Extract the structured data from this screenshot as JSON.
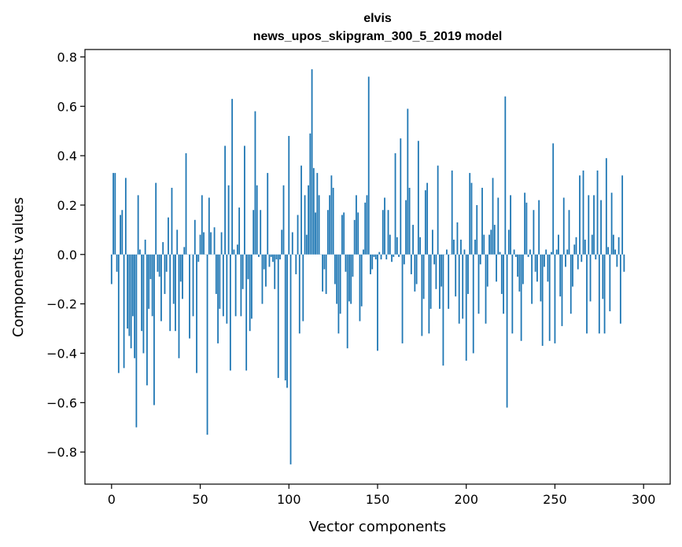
{
  "chart_data": {
    "type": "bar",
    "title_line1": "elvis",
    "title_line2": "news_upos_skipgram_300_5_2019 model",
    "xlabel": "Vector components",
    "ylabel": "Components values",
    "xlim": [
      -15,
      315
    ],
    "ylim": [
      -0.93,
      0.83
    ],
    "xticks": [
      0,
      50,
      100,
      150,
      200,
      250,
      300
    ],
    "yticks": [
      -0.8,
      -0.6,
      -0.4,
      -0.2,
      0.0,
      0.2,
      0.4,
      0.6,
      0.8
    ],
    "ytick_labels": [
      "−0.8",
      "−0.6",
      "−0.4",
      "−0.2",
      "0.0",
      "0.2",
      "0.4",
      "0.6",
      "0.8"
    ],
    "bar_color": "#1f77b4",
    "grid": false,
    "values": [
      -0.12,
      0.33,
      0.33,
      -0.07,
      -0.48,
      0.16,
      0.18,
      -0.46,
      0.31,
      -0.3,
      -0.33,
      -0.38,
      -0.25,
      -0.42,
      -0.7,
      0.24,
      0.02,
      -0.31,
      -0.4,
      0.06,
      -0.53,
      -0.22,
      -0.1,
      -0.25,
      -0.61,
      0.29,
      -0.07,
      -0.09,
      -0.27,
      0.05,
      -0.16,
      -0.07,
      0.15,
      -0.31,
      0.27,
      -0.2,
      -0.31,
      0.1,
      -0.42,
      -0.11,
      -0.18,
      0.03,
      0.41,
      0.0,
      -0.34,
      0.0,
      -0.25,
      0.14,
      -0.48,
      -0.03,
      0.08,
      0.24,
      0.09,
      0.0,
      -0.73,
      0.23,
      0.09,
      0.0,
      0.11,
      -0.16,
      -0.36,
      -0.22,
      0.09,
      -0.25,
      0.44,
      -0.28,
      0.28,
      -0.47,
      0.63,
      0.02,
      -0.25,
      0.04,
      0.19,
      -0.25,
      -0.14,
      0.44,
      -0.47,
      -0.1,
      -0.31,
      -0.26,
      0.18,
      0.58,
      0.28,
      -0.01,
      0.18,
      -0.2,
      -0.06,
      -0.13,
      0.33,
      -0.05,
      -0.01,
      -0.03,
      -0.14,
      -0.02,
      -0.5,
      -0.02,
      0.1,
      0.28,
      -0.51,
      -0.54,
      0.48,
      -0.85,
      0.09,
      0.0,
      -0.08,
      0.16,
      -0.32,
      0.36,
      -0.27,
      0.24,
      0.08,
      0.28,
      0.49,
      0.75,
      0.35,
      0.17,
      0.33,
      0.24,
      0.0,
      -0.15,
      -0.06,
      -0.16,
      0.18,
      0.24,
      0.32,
      0.27,
      -0.12,
      -0.2,
      -0.32,
      -0.24,
      0.16,
      0.17,
      -0.07,
      -0.38,
      -0.19,
      -0.2,
      -0.09,
      0.14,
      0.24,
      0.17,
      -0.27,
      -0.21,
      0.02,
      0.21,
      0.24,
      0.72,
      -0.08,
      -0.06,
      -0.01,
      -0.02,
      -0.39,
      0.01,
      -0.02,
      0.18,
      0.23,
      -0.02,
      0.18,
      0.08,
      -0.03,
      -0.01,
      0.41,
      0.07,
      -0.01,
      0.47,
      -0.36,
      -0.04,
      0.22,
      0.59,
      0.27,
      -0.08,
      0.12,
      -0.15,
      -0.12,
      0.46,
      0.07,
      -0.33,
      -0.18,
      0.26,
      0.29,
      -0.32,
      -0.22,
      0.1,
      -0.04,
      -0.14,
      0.36,
      -0.22,
      -0.13,
      -0.45,
      0.0,
      0.02,
      -0.22,
      0.0,
      0.34,
      0.06,
      -0.17,
      0.13,
      -0.28,
      0.06,
      -0.26,
      0.02,
      -0.43,
      -0.16,
      0.33,
      0.29,
      -0.4,
      0.06,
      0.2,
      -0.24,
      -0.04,
      0.27,
      0.08,
      -0.28,
      -0.13,
      0.08,
      0.1,
      0.31,
      0.12,
      -0.11,
      0.23,
      0.01,
      -0.16,
      -0.24,
      0.64,
      -0.62,
      0.1,
      0.24,
      -0.32,
      0.02,
      -0.01,
      -0.09,
      -0.15,
      -0.35,
      -0.12,
      0.25,
      0.21,
      -0.01,
      0.02,
      -0.2,
      0.18,
      -0.07,
      -0.11,
      0.22,
      -0.19,
      -0.37,
      -0.05,
      0.02,
      -0.11,
      -0.35,
      0.01,
      0.45,
      -0.36,
      0.02,
      0.08,
      -0.17,
      -0.29,
      0.23,
      -0.05,
      0.02,
      0.18,
      -0.24,
      -0.13,
      0.04,
      0.07,
      -0.06,
      0.32,
      -0.03,
      0.34,
      0.06,
      -0.32,
      0.24,
      -0.19,
      0.08,
      0.24,
      -0.02,
      0.34,
      -0.32,
      0.22,
      -0.18,
      -0.32,
      0.39,
      0.03,
      -0.23,
      0.25,
      0.08,
      0.02,
      -0.05,
      0.07,
      -0.28,
      0.32,
      -0.07
    ]
  }
}
